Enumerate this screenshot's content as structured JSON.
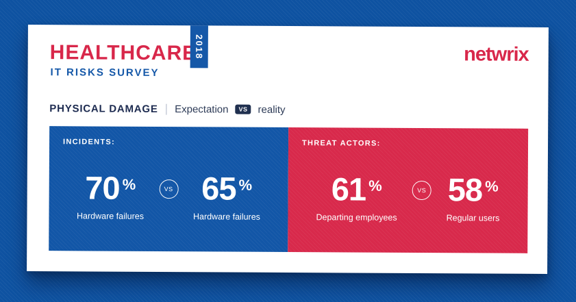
{
  "colors": {
    "background_blue": "#0e52a1",
    "panel_blue": "#1256a7",
    "panel_red": "#d8294b",
    "brand_red": "#d8274a",
    "navy": "#20304f",
    "card_white": "#ffffff"
  },
  "header": {
    "title": "HEALTHCARE",
    "year_badge": "2018",
    "subtitle": "IT RISKS SURVEY",
    "logo": "netwrix"
  },
  "section": {
    "title": "PHYSICAL DAMAGE",
    "divider": "|",
    "expectation_label": "Expectation",
    "vs_badge": "VS",
    "reality_label": "reality"
  },
  "chart_data": {
    "type": "table",
    "title": "Healthcare IT Risks Survey 2018 — Physical damage: Expectation vs reality",
    "panels": [
      {
        "name": "INCIDENTS:",
        "color": "#1256a7",
        "left": {
          "value": 70,
          "unit": "%",
          "label": "Hardware failures"
        },
        "vs": "VS",
        "right": {
          "value": 65,
          "unit": "%",
          "label": "Hardware failures"
        }
      },
      {
        "name": "THREAT ACTORS:",
        "color": "#d8294b",
        "left": {
          "value": 61,
          "unit": "%",
          "label": "Departing employees"
        },
        "vs": "VS",
        "right": {
          "value": 58,
          "unit": "%",
          "label": "Regular users"
        }
      }
    ]
  }
}
